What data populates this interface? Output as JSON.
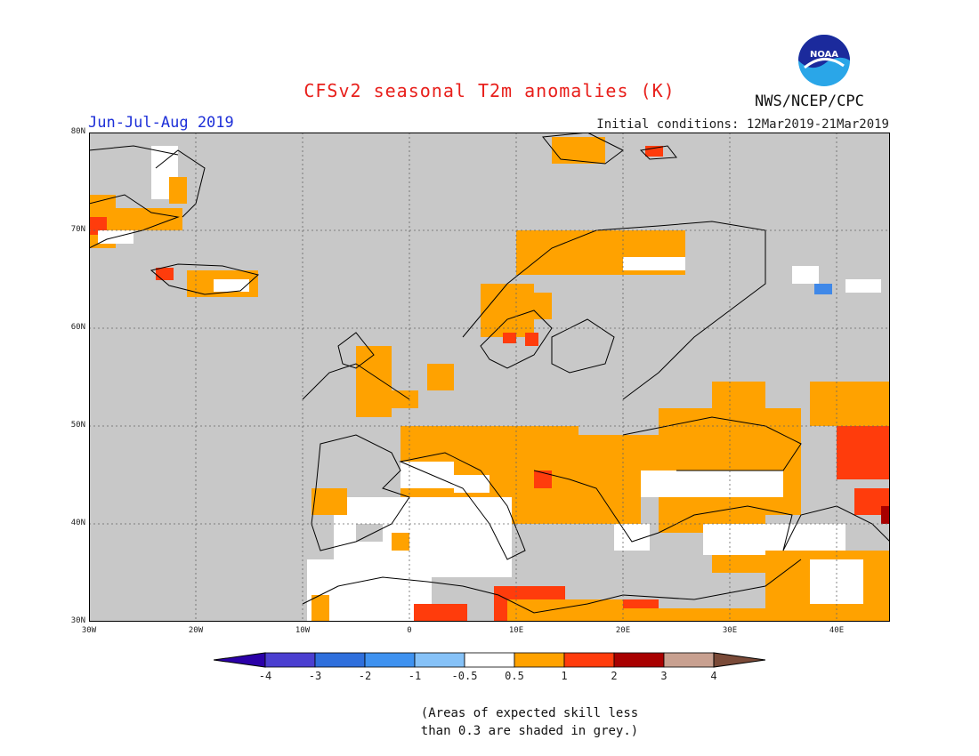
{
  "header": {
    "title": "CFSv2 seasonal T2m anomalies (K)",
    "period": "Jun-Jul-Aug 2019",
    "initial_conditions": "Initial conditions: 12Mar2019-21Mar2019",
    "agency": "NWS/NCEP/CPC",
    "logo_text": "NOAA"
  },
  "map": {
    "lon_range": [
      -30,
      45
    ],
    "lat_range": [
      30,
      80
    ],
    "lat_labels": [
      "80N",
      "70N",
      "60N",
      "50N",
      "40N",
      "30N"
    ],
    "lon_labels": [
      "30W",
      "20W",
      "10W",
      "0",
      "10E",
      "20E",
      "30E",
      "40E"
    ],
    "colors": {
      "grey": "#c8c8c8",
      "white": "#ffffff",
      "orange": "#ffa200",
      "red": "#ff3c0c",
      "darkred": "#a80000",
      "blue": "#3f88e8",
      "coast": "#000000"
    }
  },
  "colorbar": {
    "labels": [
      "-4",
      "-3",
      "-2",
      "-1",
      "-0.5",
      "0.5",
      "1",
      "2",
      "3",
      "4"
    ],
    "colors": [
      "#2b00a8",
      "#4b3fd0",
      "#2f6fdc",
      "#3f92f0",
      "#86c2f8",
      "#ffffff",
      "#ffa200",
      "#ff3c0c",
      "#a80000",
      "#c8a090",
      "#7a4a38"
    ]
  },
  "note": {
    "line1": "(Areas of expected skill less",
    "line2": "than 0.3 are shaded in grey.)"
  }
}
